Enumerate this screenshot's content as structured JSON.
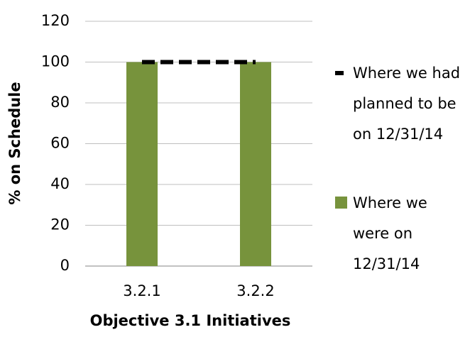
{
  "chart_data": {
    "type": "bar",
    "categories": [
      "3.2.1",
      "3.2.2"
    ],
    "series": [
      {
        "name": "Where we had planned to be on 12/31/14",
        "color": "#000000",
        "type": "line",
        "values": [
          100,
          100
        ]
      },
      {
        "name": "Where we were on 12/31/14",
        "color": "#77933c",
        "type": "bar",
        "values": [
          100,
          100
        ]
      }
    ],
    "xlabel": "Objective 3.1 Initiatives",
    "ylabel": "% on Schedule",
    "ylim": [
      0,
      120
    ],
    "yticks": [
      0,
      20,
      40,
      60,
      80,
      100,
      120
    ],
    "grid": true,
    "legend": "right"
  }
}
